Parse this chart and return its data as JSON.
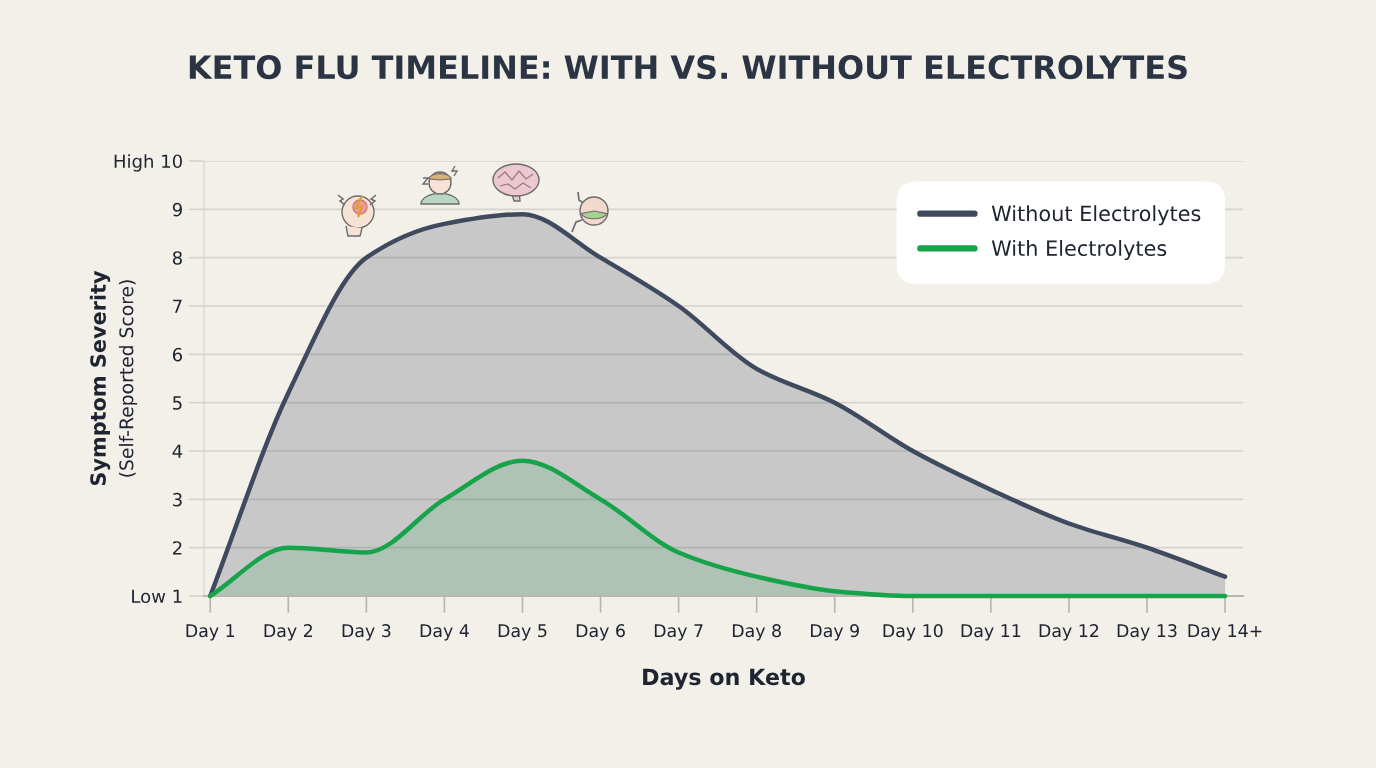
{
  "chart_data": {
    "type": "area",
    "title": "KETO FLU TIMELINE: WITH VS. WITHOUT ELECTROLYTES",
    "xlabel": "Days on Keto",
    "ylabel": "Symptom Severity\n(Self-Reported Score)",
    "categories": [
      "Day 1",
      "Day 2",
      "Day 3",
      "Day 4",
      "Day 5",
      "Day 6",
      "Day 7",
      "Day 8",
      "Day 9",
      "Day 10",
      "Day 11",
      "Day 12",
      "Day 13",
      "Day 14+"
    ],
    "series": [
      {
        "name": "Without Electrolytes",
        "color": "#3f4a5f",
        "values": [
          1.0,
          5.2,
          8.0,
          8.7,
          8.9,
          8.0,
          7.0,
          5.7,
          5.0,
          4.0,
          3.2,
          2.5,
          2.0,
          1.4
        ]
      },
      {
        "name": "With Electrolytes",
        "color": "#16a34a",
        "values": [
          1.0,
          2.0,
          1.9,
          3.0,
          3.8,
          3.0,
          1.9,
          1.4,
          1.1,
          1.0,
          1.0,
          1.0,
          1.0,
          1.0
        ]
      }
    ],
    "ylim": [
      1,
      10
    ],
    "yticks": [
      {
        "value": 1,
        "label": "Low 1"
      },
      2,
      3,
      4,
      5,
      6,
      7,
      8,
      9,
      {
        "value": 10,
        "label": "High 10"
      }
    ],
    "grid": "y",
    "legend": "top right",
    "line_style": "solid"
  }
}
